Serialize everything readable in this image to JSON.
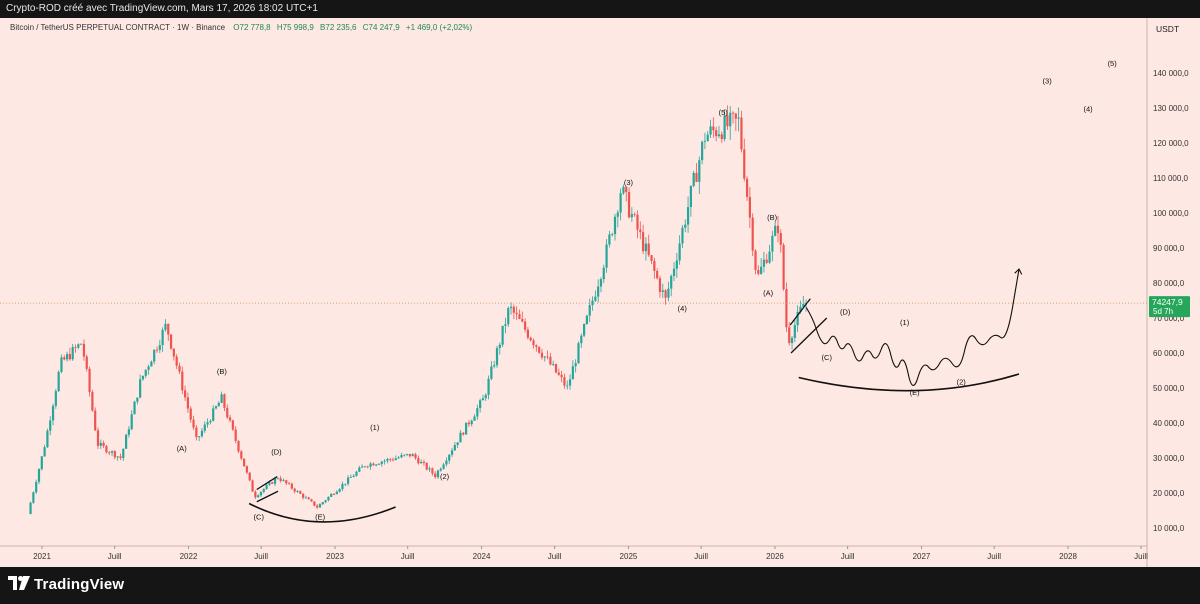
{
  "header": {
    "publish_line": "Crypto-ROD créé avec TradingView.com, Mars 17, 2026 18:02 UTC+1"
  },
  "footer": {
    "brand": "TradingView"
  },
  "colors": {
    "up": "#26a69a",
    "down": "#ef5350",
    "price_line": "#d08a52",
    "price_badge": "#26a65b",
    "background": "#fde8e3"
  },
  "chart_data": {
    "type": "candlestick",
    "symbol_line": "Bitcoin / TetherUS PERPETUAL CONTRACT · 1W · Binance",
    "ohlc": {
      "open": "O72 778,8",
      "high": "H75 998,9",
      "low": "B72 235,6",
      "close": "C74 247,9",
      "change": "+1 469,0 (+2,02%)"
    },
    "currency": "USDT",
    "y_axis": {
      "min": 0,
      "max": 150000,
      "ticks": [
        {
          "v": 10000,
          "label": "10 000,0"
        },
        {
          "v": 20000,
          "label": "20 000,0"
        },
        {
          "v": 30000,
          "label": "30 000,0"
        },
        {
          "v": 40000,
          "label": "40 000,0"
        },
        {
          "v": 50000,
          "label": "50 000,0"
        },
        {
          "v": 60000,
          "label": "60 000,0"
        },
        {
          "v": 70000,
          "label": "70 000,0"
        },
        {
          "v": 80000,
          "label": "80 000,0"
        },
        {
          "v": 90000,
          "label": "90 000,0"
        },
        {
          "v": 100000,
          "label": "100 000,0"
        },
        {
          "v": 110000,
          "label": "110 000,0"
        },
        {
          "v": 120000,
          "label": "120 000,0"
        },
        {
          "v": 130000,
          "label": "130 000,0"
        },
        {
          "v": 140000,
          "label": "140 000,0"
        }
      ]
    },
    "x_axis": {
      "ticks": [
        {
          "t": "2021-01-01",
          "label": "2021"
        },
        {
          "t": "2021-07-01",
          "label": "Juill"
        },
        {
          "t": "2022-01-01",
          "label": "2022"
        },
        {
          "t": "2022-07-01",
          "label": "Juill"
        },
        {
          "t": "2023-01-01",
          "label": "2023"
        },
        {
          "t": "2023-07-01",
          "label": "Juill"
        },
        {
          "t": "2024-01-01",
          "label": "2024"
        },
        {
          "t": "2024-07-01",
          "label": "Juill"
        },
        {
          "t": "2025-01-01",
          "label": "2025"
        },
        {
          "t": "2025-07-01",
          "label": "Juill"
        },
        {
          "t": "2026-01-01",
          "label": "2026"
        },
        {
          "t": "2026-07-01",
          "label": "Juill"
        },
        {
          "t": "2027-01-01",
          "label": "2027"
        },
        {
          "t": "2027-07-01",
          "label": "Juill"
        },
        {
          "t": "2028-01-01",
          "label": "2028"
        },
        {
          "t": "2028-07-01",
          "label": "Juill"
        }
      ]
    },
    "last_price": {
      "value": 74247.9,
      "label": "74247,9",
      "countdown": "5d 7h"
    },
    "series": [
      {
        "points": [
          [
            "2020-11-30",
            14000
          ],
          [
            "2021-01-10",
            33000
          ],
          [
            "2021-02-20",
            57000
          ],
          [
            "2021-04-14",
            63000
          ],
          [
            "2021-05-23",
            34000
          ],
          [
            "2021-07-20",
            30000
          ],
          [
            "2021-09-07",
            52000
          ],
          [
            "2021-11-10",
            68000
          ],
          [
            "2022-01-24",
            35000
          ],
          [
            "2022-03-28",
            47000
          ],
          [
            "2022-06-18",
            19000
          ],
          [
            "2022-08-15",
            24500
          ],
          [
            "2022-11-21",
            16000
          ],
          [
            "2023-03-20",
            28000
          ],
          [
            "2023-07-14",
            31000
          ],
          [
            "2023-09-11",
            25000
          ],
          [
            "2024-01-10",
            47000
          ],
          [
            "2024-03-14",
            73000
          ],
          [
            "2024-08-05",
            50000
          ],
          [
            "2024-11-11",
            89000
          ],
          [
            "2024-12-17",
            107000
          ],
          [
            "2025-04-07",
            75000
          ],
          [
            "2025-07-14",
            122000
          ],
          [
            "2025-08-14",
            124000
          ],
          [
            "2025-10-06",
            126000
          ],
          [
            "2025-11-21",
            81000
          ],
          [
            "2026-01-14",
            97000
          ],
          [
            "2026-02-05",
            63000
          ],
          [
            "2026-03-17",
            74247.9
          ]
        ]
      }
    ],
    "annotations": [
      {
        "label": "(A)",
        "t": "2021-12-15",
        "v": 32000
      },
      {
        "label": "(B)",
        "t": "2022-03-25",
        "v": 54000
      },
      {
        "label": "(C)",
        "t": "2022-06-25",
        "v": 12500
      },
      {
        "label": "(D)",
        "t": "2022-08-08",
        "v": 31000
      },
      {
        "label": "(E)",
        "t": "2022-11-25",
        "v": 12500
      },
      {
        "label": "(1)",
        "t": "2023-04-10",
        "v": 38000
      },
      {
        "label": "(2)",
        "t": "2023-10-01",
        "v": 24000
      },
      {
        "label": "(3)",
        "t": "2025-01-01",
        "v": 108000
      },
      {
        "label": "(4)",
        "t": "2025-05-15",
        "v": 72000
      },
      {
        "label": "(5)",
        "t": "2025-08-25",
        "v": 128000
      },
      {
        "label": "(B)",
        "t": "2025-12-25",
        "v": 98000
      },
      {
        "label": "(A)",
        "t": "2025-12-15",
        "v": 76500
      },
      {
        "label": "(C)",
        "t": "2026-05-10",
        "v": 58000
      },
      {
        "label": "(D)",
        "t": "2026-06-25",
        "v": 71000
      },
      {
        "label": "(1)",
        "t": "2026-11-20",
        "v": 68000
      },
      {
        "label": "(E)",
        "t": "2026-12-15",
        "v": 48000
      },
      {
        "label": "(2)",
        "t": "2027-04-10",
        "v": 51000
      },
      {
        "label": "(3)",
        "t": "2027-11-10",
        "v": 137000
      },
      {
        "label": "(4)",
        "t": "2028-02-20",
        "v": 129000
      },
      {
        "label": "(5)",
        "t": "2028-04-20",
        "v": 142000
      }
    ],
    "drawings": {
      "projection": [
        [
          "2026-03-20",
          73000
        ],
        [
          "2026-04-05",
          70000
        ],
        [
          "2026-04-22",
          64000
        ],
        [
          "2026-05-08",
          62000
        ],
        [
          "2026-05-28",
          66000
        ],
        [
          "2026-06-15",
          60000
        ],
        [
          "2026-07-05",
          64000
        ],
        [
          "2026-07-28",
          56000
        ],
        [
          "2026-08-20",
          62000
        ],
        [
          "2026-09-10",
          57000
        ],
        [
          "2026-10-05",
          65000
        ],
        [
          "2026-10-28",
          54000
        ],
        [
          "2026-11-18",
          60000
        ],
        [
          "2026-12-10",
          48000
        ],
        [
          "2027-01-05",
          58000
        ],
        [
          "2027-02-01",
          54000
        ],
        [
          "2027-03-01",
          60000
        ],
        [
          "2027-04-05",
          54000
        ],
        [
          "2027-05-01",
          67000
        ],
        [
          "2027-06-01",
          61000
        ],
        [
          "2027-07-01",
          66000
        ],
        [
          "2027-08-01",
          63000
        ],
        [
          "2027-09-01",
          84000
        ]
      ],
      "arcs": [
        [
          [
            "2022-06-01",
            17000
          ],
          [
            "2022-11-20",
            7000
          ],
          [
            "2023-06-01",
            16000
          ]
        ],
        [
          [
            "2026-03-01",
            53000
          ],
          [
            "2026-12-20",
            45000
          ],
          [
            "2027-09-01",
            54000
          ]
        ]
      ],
      "triangles": [
        [
          [
            "2022-06-20",
            17500
          ],
          [
            "2022-08-12",
            20500
          ],
          [
            "2022-06-20",
            21000
          ],
          [
            "2022-08-10",
            24700
          ]
        ],
        [
          [
            "2026-02-10",
            60000
          ],
          [
            "2026-05-10",
            70000
          ],
          [
            "2026-02-08",
            68000
          ],
          [
            "2026-03-30",
            75500
          ]
        ]
      ]
    }
  }
}
